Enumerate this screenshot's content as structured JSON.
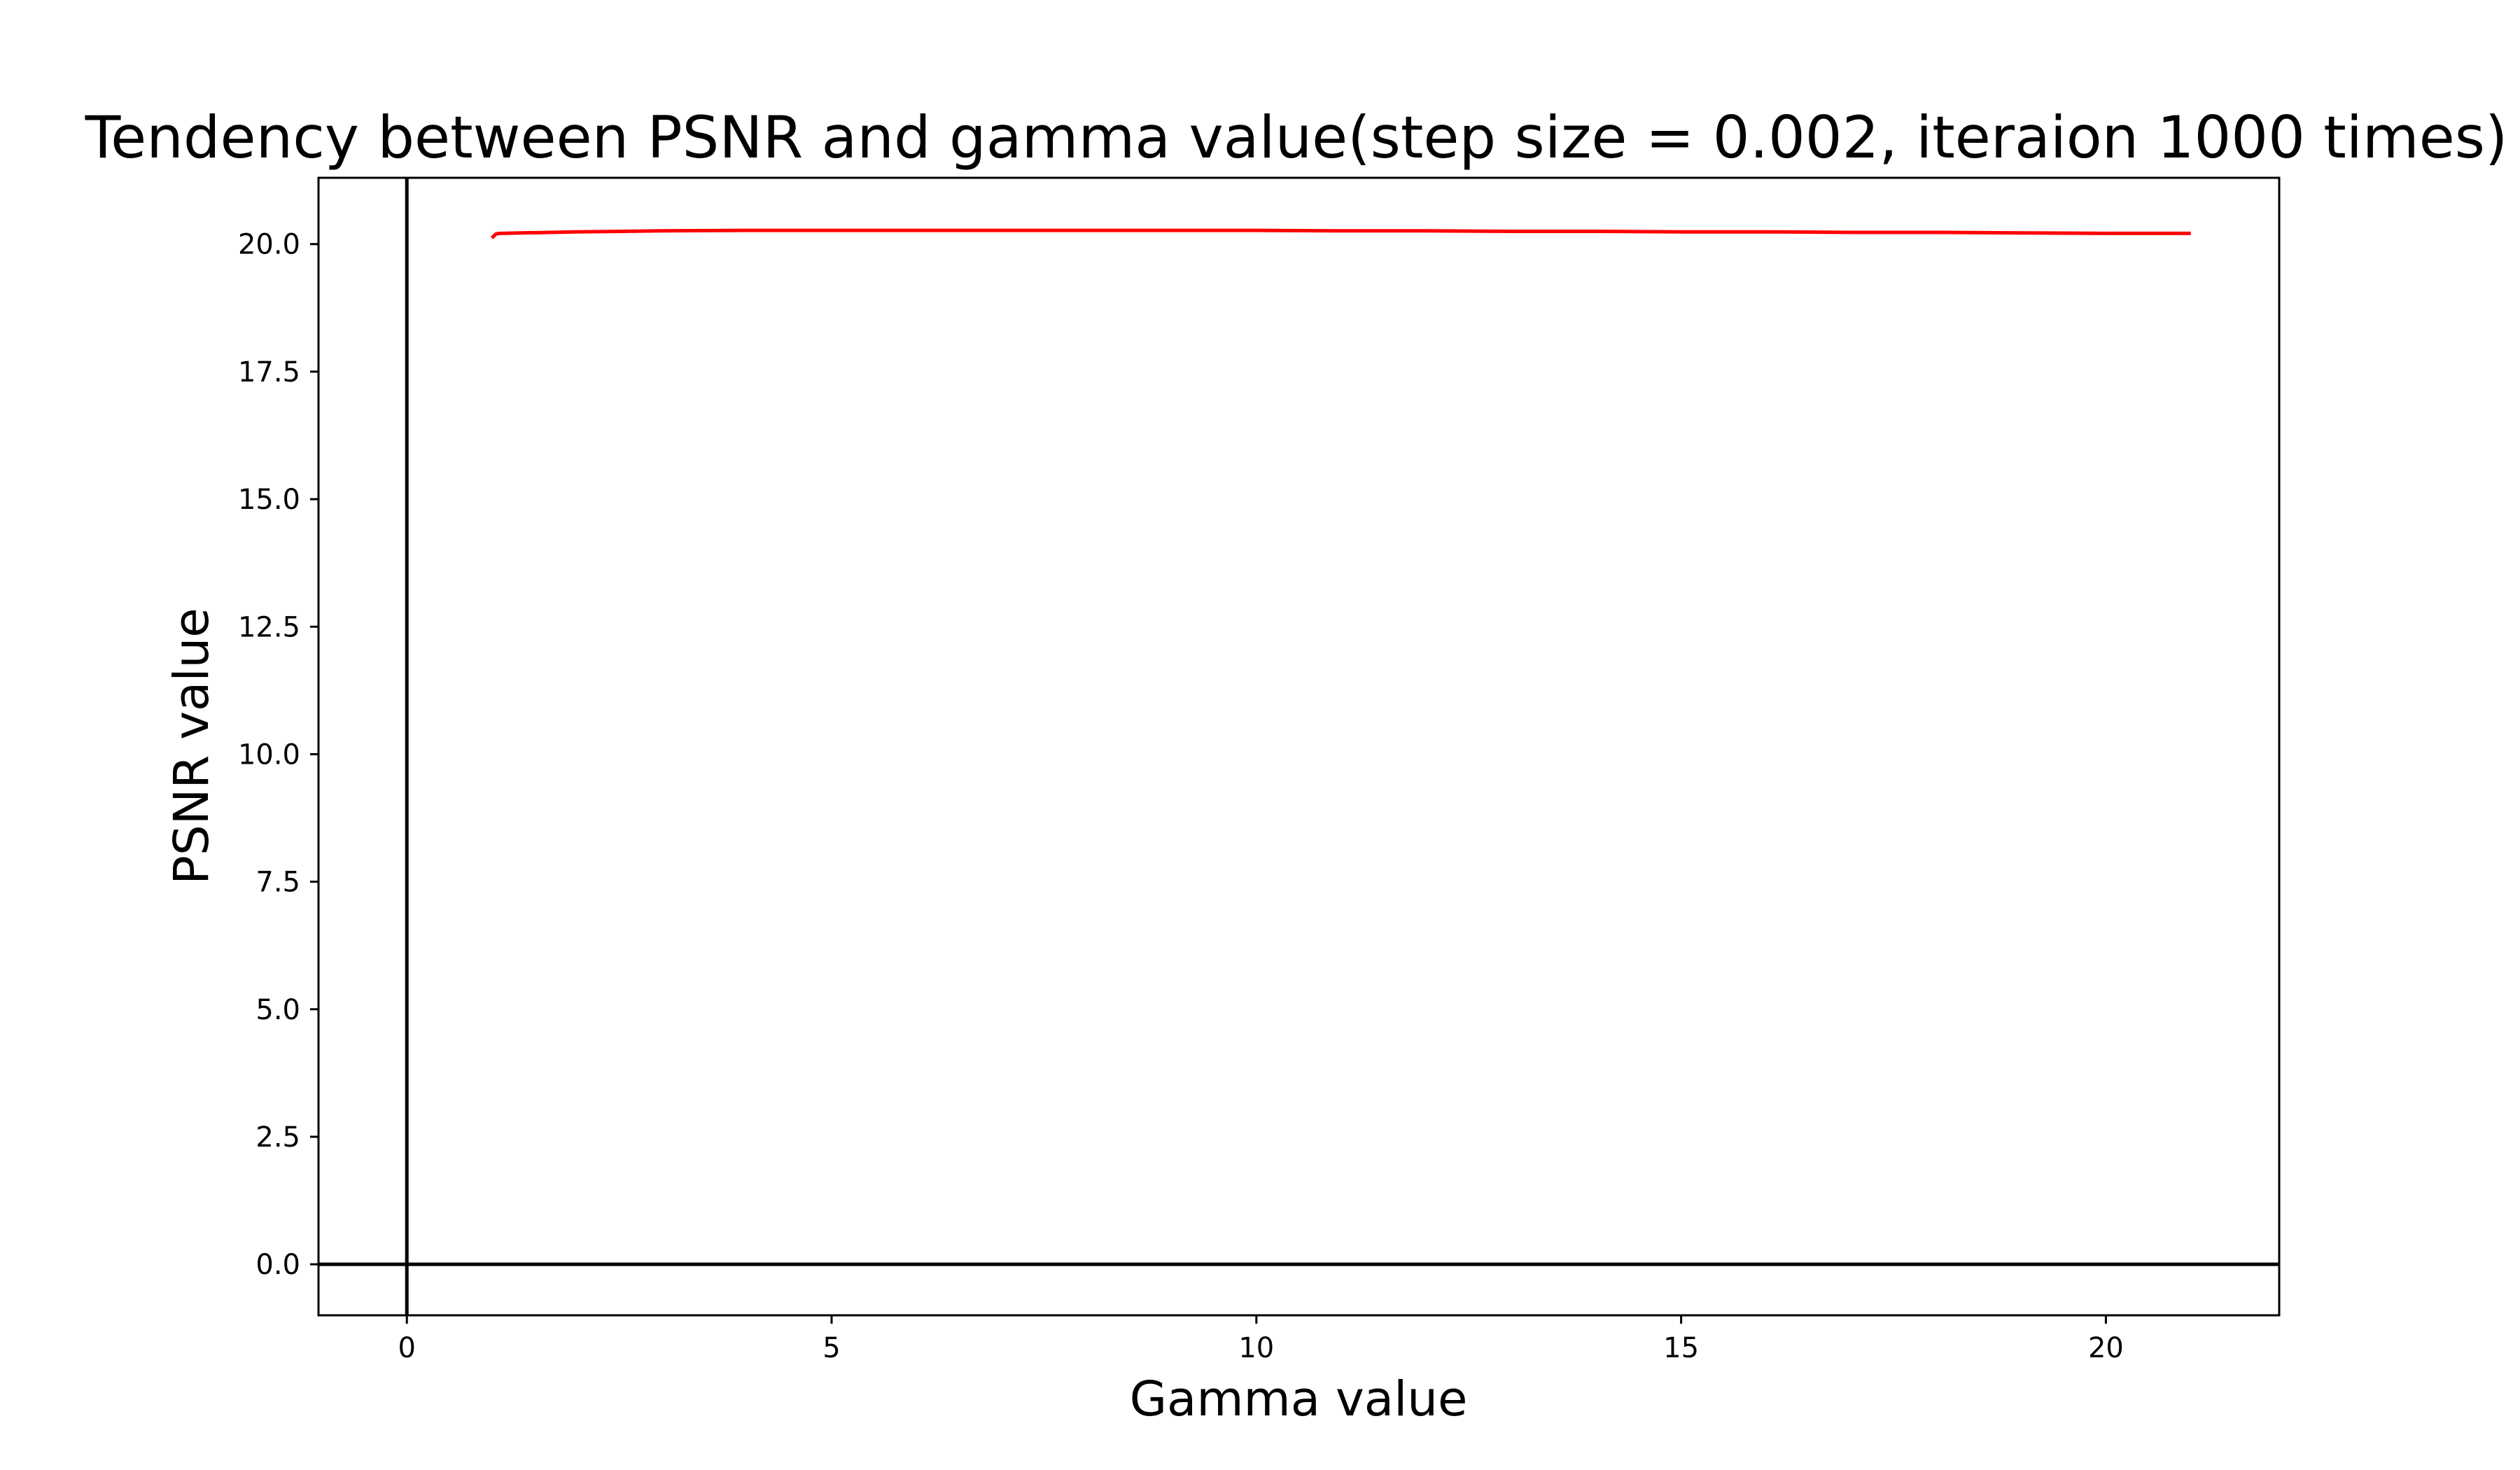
{
  "chart_data": {
    "type": "line",
    "title": "Tendency between PSNR and gamma value(step size = 0.002, iteraion 1000 times)",
    "xlabel": "Gamma value",
    "ylabel": "PSNR value",
    "xlim": [
      -1.04,
      22.04
    ],
    "ylim": [
      -1.0,
      21.3
    ],
    "xticks": [
      0,
      5,
      10,
      15,
      20
    ],
    "xtick_labels": [
      "0",
      "5",
      "10",
      "15",
      "20"
    ],
    "yticks": [
      0.0,
      2.5,
      5.0,
      7.5,
      10.0,
      12.5,
      15.0,
      17.5,
      20.0
    ],
    "ytick_labels": [
      "0.0",
      "2.5",
      "5.0",
      "7.5",
      "10.0",
      "12.5",
      "15.0",
      "17.5",
      "20.0"
    ],
    "grid": false,
    "reference_lines": {
      "x": 0,
      "y": 0,
      "color": "#000000"
    },
    "series": [
      {
        "color": "#ff0000",
        "x": [
          1.0,
          1.05,
          1.1,
          2,
          3,
          4,
          5,
          6,
          7,
          8,
          9,
          10,
          11,
          12,
          13,
          14,
          15,
          16,
          17,
          18,
          19,
          20,
          21
        ],
        "y": [
          20.12,
          20.2,
          20.21,
          20.24,
          20.26,
          20.27,
          20.27,
          20.27,
          20.27,
          20.27,
          20.27,
          20.27,
          20.26,
          20.26,
          20.25,
          20.25,
          20.24,
          20.24,
          20.23,
          20.23,
          20.22,
          20.21,
          20.21
        ]
      }
    ]
  }
}
